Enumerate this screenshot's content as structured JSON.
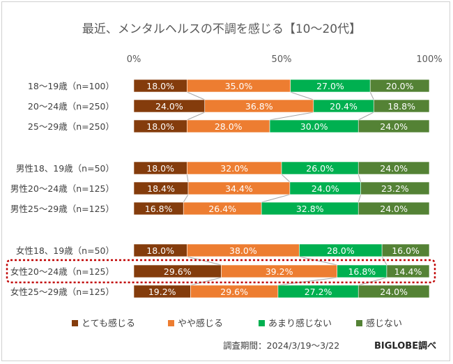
{
  "chart_data": {
    "type": "bar",
    "orientation": "horizontal",
    "stacked": "percent",
    "title": "最近、メンタルヘルスの不調を感じる【10～20代】",
    "axis_ticks": [
      "0%",
      "50%",
      "100%"
    ],
    "xlim": [
      0,
      100
    ],
    "grid": false,
    "legend_position": "bottom",
    "categories": [
      "18～19歳（n=100）",
      "20～24歳（n=250）",
      "25～29歳（n=250）",
      "男性18、19歳（n=50）",
      "男性20～24歳（n=125）",
      "男性25～29歳（n=125）",
      "女性18、19歳（n=50）",
      "女性20～24歳（n=125）",
      "女性25～29歳（n=125）"
    ],
    "groups": [
      [
        0,
        1,
        2
      ],
      [
        3,
        4,
        5
      ],
      [
        6,
        7,
        8
      ]
    ],
    "highlighted_category_index": 7,
    "series": [
      {
        "name": "とても感じる",
        "color": "#843C0C",
        "values": [
          18.0,
          24.0,
          18.0,
          18.0,
          18.4,
          16.8,
          18.0,
          29.6,
          19.2
        ]
      },
      {
        "name": "やや感じる",
        "color": "#ED7D31",
        "values": [
          35.0,
          36.8,
          28.0,
          32.0,
          34.4,
          26.4,
          38.0,
          39.2,
          29.6
        ]
      },
      {
        "name": "あまり感じない",
        "color": "#00B050",
        "values": [
          27.0,
          20.4,
          30.0,
          26.0,
          24.0,
          32.8,
          28.0,
          16.8,
          27.2
        ]
      },
      {
        "name": "感じない",
        "color": "#548235",
        "values": [
          20.0,
          18.8,
          24.0,
          24.0,
          23.2,
          24.0,
          16.0,
          14.4,
          24.0
        ]
      }
    ],
    "value_labels": [
      [
        "18.0%",
        "24.0%",
        "18.0%",
        "18.0%",
        "18.4%",
        "16.8%",
        "18.0%",
        "29.6%",
        "19.2%"
      ],
      [
        "35.0%",
        "36.8%",
        "28.0%",
        "32.0%",
        "34.4%",
        "26.4%",
        "38.0%",
        "39.2%",
        "29.6%"
      ],
      [
        "27.0%",
        "20.4%",
        "30.0%",
        "26.0%",
        "24.0%",
        "32.8%",
        "28.0%",
        "16.8%",
        "27.2%"
      ],
      [
        "20.0%",
        "18.8%",
        "24.0%",
        "24.0%",
        "23.2%",
        "24.0%",
        "16.0%",
        "14.4%",
        "24.0%"
      ]
    ],
    "highlight_color": "#C00000",
    "connector_color": "#a6a6a6"
  },
  "footer": {
    "survey_period": "調査期間：2024/3/19～3/22",
    "source": "BIGLOBE調べ"
  }
}
